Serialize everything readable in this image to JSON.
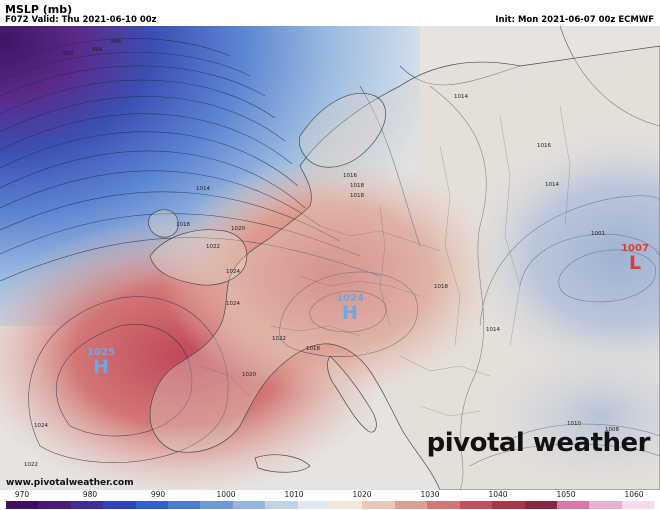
{
  "header": {
    "title": "MSLP (mb)",
    "valid": "F072 Valid: Thu 2021-06-10 00z",
    "init": "Init: Mon 2021-06-07 00z ECMWF"
  },
  "map": {
    "region": "Europe",
    "centers": [
      {
        "type": "H",
        "value": "1025",
        "color": "#6ea7e8"
      },
      {
        "type": "H",
        "value": "1024",
        "color": "#6ea7e8"
      },
      {
        "type": "L",
        "value": "1007",
        "color": "#e03a2e"
      }
    ],
    "isobar_labels": [
      "996",
      "994",
      "993",
      "1014",
      "1018",
      "1022",
      "1020",
      "1024",
      "1018",
      "1016",
      "1018",
      "1014",
      "1016",
      "1014",
      "1014",
      "1018",
      "1022",
      "1018",
      "1020",
      "1024",
      "1022",
      "1001",
      "1010",
      "1008",
      "1024"
    ]
  },
  "colorbar": {
    "ticks": [
      "970",
      "980",
      "990",
      "1000",
      "1010",
      "1020",
      "1030",
      "1040",
      "1050",
      "1060"
    ],
    "colors": [
      "#3b0f63",
      "#4a1b7d",
      "#3d2f96",
      "#2d47b0",
      "#2f63c4",
      "#4a7fd0",
      "#6f9bd8",
      "#96b6e0",
      "#c0d2e6",
      "#e3e8ec",
      "#efe6de",
      "#e8c8b8",
      "#de9f93",
      "#d27676",
      "#c24f5c",
      "#a8364a",
      "#8a2740",
      "#d978a8",
      "#eab0cf",
      "#f6dcea"
    ]
  },
  "branding": {
    "watermark": "pivotal weather",
    "website": "www.pivotalweather.com"
  }
}
